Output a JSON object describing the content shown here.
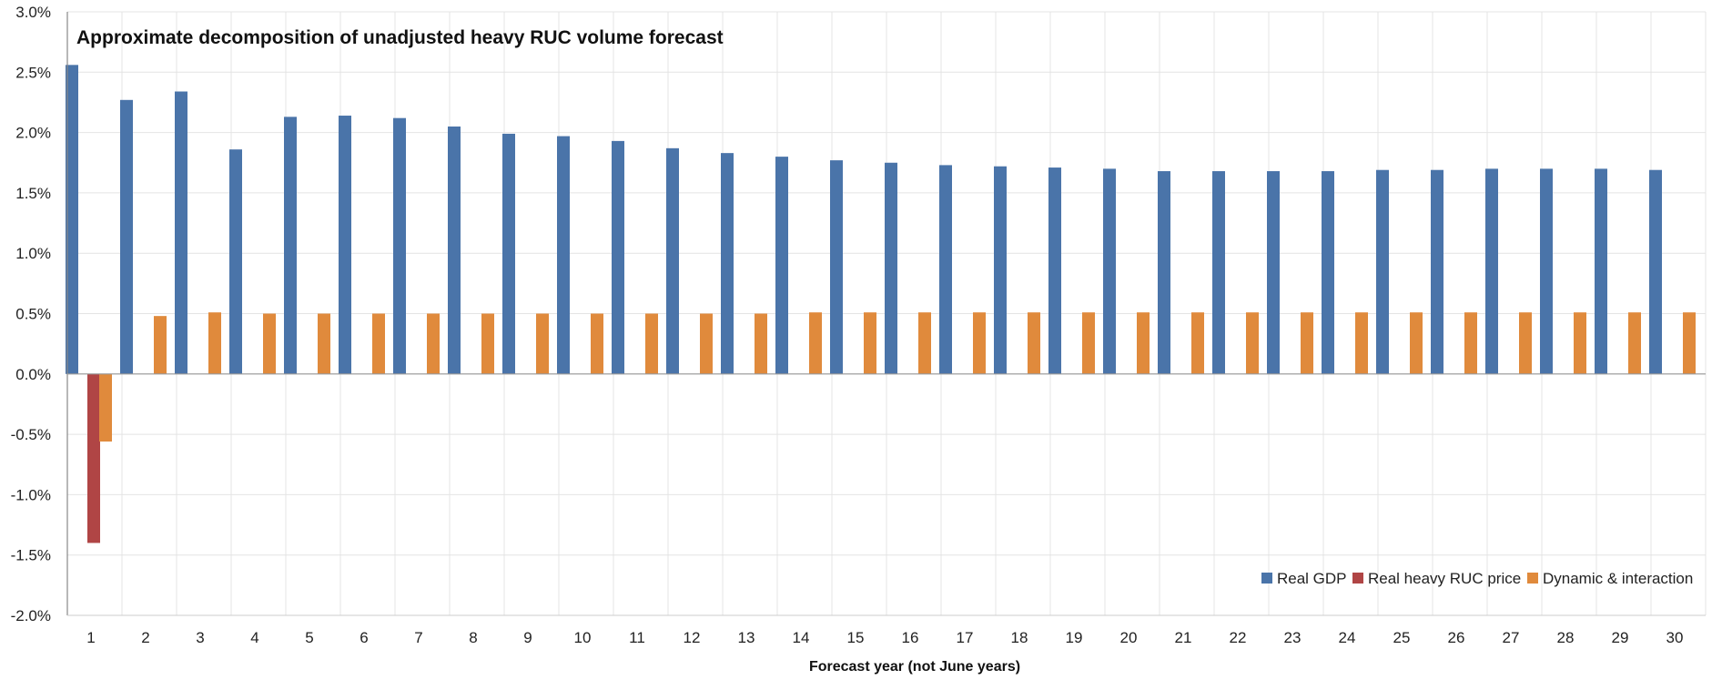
{
  "chart_data": {
    "type": "bar",
    "title": "Approximate decomposition of unadjusted heavy RUC volume forecast",
    "xlabel": "Forecast year (not June years)",
    "ylabel": "",
    "ylim": [
      -2.0,
      3.0
    ],
    "yticks": [
      "3.0%",
      "2.5%",
      "2.0%",
      "1.5%",
      "1.0%",
      "0.5%",
      "0.0%",
      "-0.5%",
      "-1.0%",
      "-1.5%",
      "-2.0%"
    ],
    "grid": true,
    "legend_position": "bottom-right",
    "categories": [
      "1",
      "2",
      "3",
      "4",
      "5",
      "6",
      "7",
      "8",
      "9",
      "10",
      "11",
      "12",
      "13",
      "14",
      "15",
      "16",
      "17",
      "18",
      "19",
      "20",
      "21",
      "22",
      "23",
      "24",
      "25",
      "26",
      "27",
      "28",
      "29",
      "30"
    ],
    "series": [
      {
        "name": "Real GDP",
        "color": "#4a74a9",
        "values": [
          2.56,
          2.27,
          2.34,
          1.86,
          2.13,
          2.14,
          2.12,
          2.05,
          1.99,
          1.97,
          1.93,
          1.87,
          1.83,
          1.8,
          1.77,
          1.75,
          1.73,
          1.72,
          1.71,
          1.7,
          1.68,
          1.68,
          1.68,
          1.68,
          1.69,
          1.69,
          1.7,
          1.7,
          1.7,
          1.69
        ]
      },
      {
        "name": "Real heavy RUC price",
        "color": "#b04545",
        "values": [
          -1.4,
          0,
          0,
          0,
          0,
          0,
          0,
          0,
          0,
          0,
          0,
          0,
          0,
          0,
          0,
          0,
          0,
          0,
          0,
          0,
          0,
          0,
          0,
          0,
          0,
          0,
          0,
          0,
          0,
          0
        ]
      },
      {
        "name": "Dynamic & interaction",
        "color": "#e08a3c",
        "values": [
          -0.56,
          0.48,
          0.51,
          0.5,
          0.5,
          0.5,
          0.5,
          0.5,
          0.5,
          0.5,
          0.5,
          0.5,
          0.5,
          0.51,
          0.51,
          0.51,
          0.51,
          0.51,
          0.51,
          0.51,
          0.51,
          0.51,
          0.51,
          0.51,
          0.51,
          0.51,
          0.51,
          0.51,
          0.51,
          0.51
        ]
      }
    ]
  }
}
